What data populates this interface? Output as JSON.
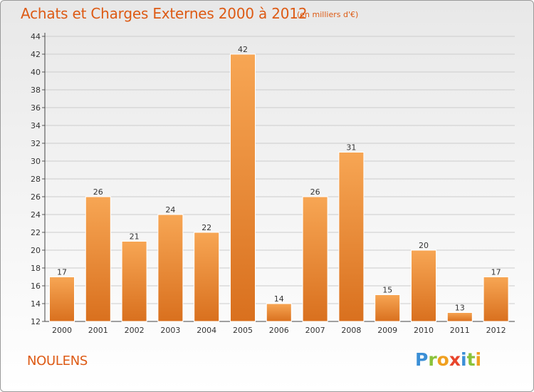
{
  "header": {
    "title": "Achats et Charges Externes 2000 à 2012",
    "unit": "(en milliers d'€)"
  },
  "footer": {
    "commune": "NOULENS",
    "logo_text": "Proxiti",
    "logo_colors": [
      "#3b8fd6",
      "#8ac23a",
      "#f0a020",
      "#e8452c",
      "#3b8fd6",
      "#8ac23a",
      "#f0a020"
    ]
  },
  "colors": {
    "title": "#dd5a14",
    "bar_light": "#f7a654",
    "bar_dark": "#d9701e",
    "bar_stroke": "#ffffff",
    "grid": "#cccccc",
    "axis_text": "#333333"
  },
  "chart_data": {
    "type": "bar",
    "title": "Achats et Charges Externes 2000 à 2012",
    "subtitle": "(en milliers d'€)",
    "xlabel": "",
    "ylabel": "",
    "categories": [
      "2000",
      "2001",
      "2002",
      "2003",
      "2004",
      "2005",
      "2006",
      "2007",
      "2008",
      "2009",
      "2010",
      "2011",
      "2012"
    ],
    "values": [
      17,
      26,
      21,
      24,
      22,
      42,
      14,
      26,
      31,
      15,
      20,
      13,
      17
    ],
    "ylim": [
      12,
      44
    ],
    "yticks": [
      12,
      14,
      16,
      18,
      20,
      22,
      24,
      26,
      28,
      30,
      32,
      34,
      36,
      38,
      40,
      42,
      44
    ],
    "grid": true,
    "data_labels": true
  }
}
